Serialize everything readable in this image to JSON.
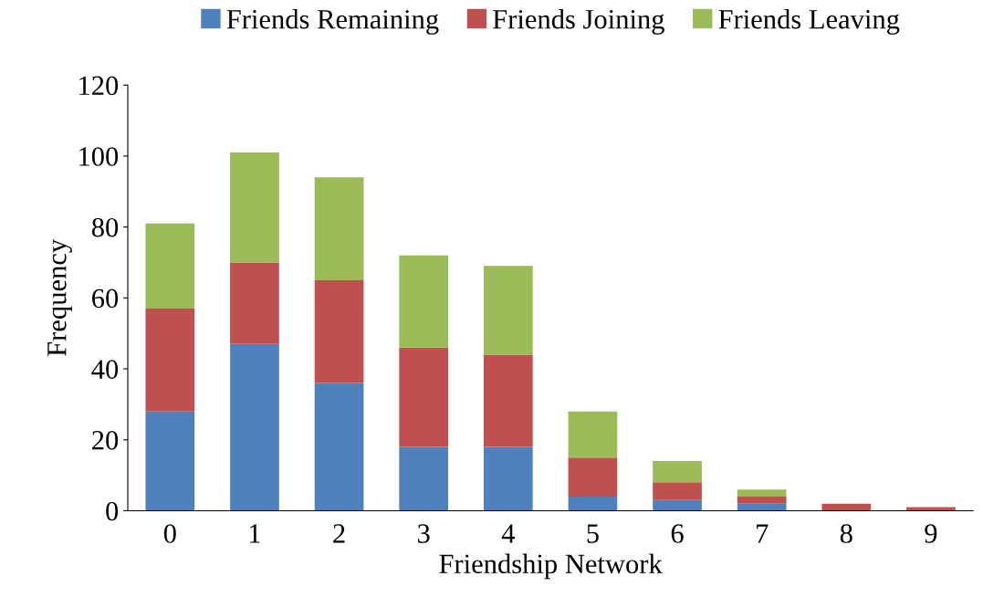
{
  "chart_data": {
    "type": "bar",
    "stacked": true,
    "xlabel": "Friendship Network",
    "ylabel": "Frequency",
    "categories": [
      "0",
      "1",
      "2",
      "3",
      "4",
      "5",
      "6",
      "7",
      "8",
      "9"
    ],
    "series": [
      {
        "name": "Friends Remaining",
        "color": "#4f81bd",
        "values": [
          28,
          47,
          36,
          18,
          18,
          4,
          3,
          2,
          0,
          0
        ]
      },
      {
        "name": "Friends Joining",
        "color": "#c0504d",
        "values": [
          29,
          23,
          29,
          28,
          26,
          11,
          5,
          2,
          2,
          1
        ]
      },
      {
        "name": "Friends Leaving",
        "color": "#9bbb59",
        "values": [
          24,
          31,
          29,
          26,
          25,
          13,
          6,
          2,
          0,
          0
        ]
      }
    ],
    "ylim": [
      0,
      120
    ],
    "yticks": [
      0,
      20,
      40,
      60,
      80,
      100,
      120
    ],
    "grid": false,
    "legend": "top"
  }
}
